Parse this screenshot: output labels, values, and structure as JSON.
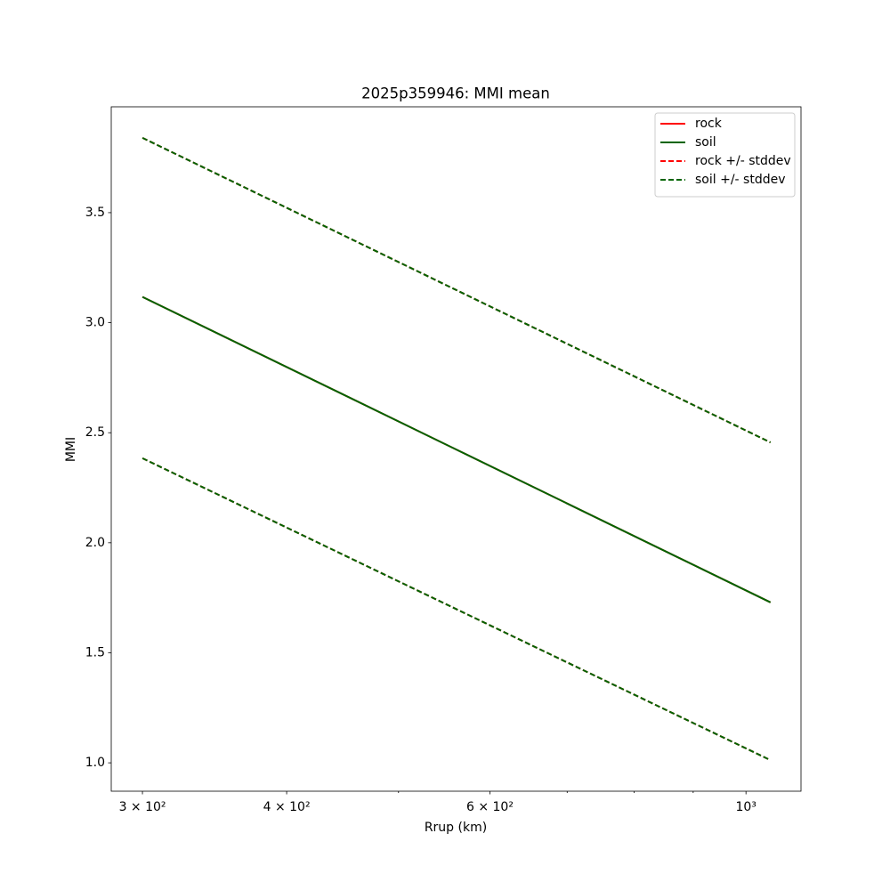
{
  "chart_data": {
    "type": "line",
    "title": "2025p359946: MMI mean",
    "xlabel": "Rrup (km)",
    "ylabel": "MMI",
    "xscale": "log",
    "x": [
      300,
      1050
    ],
    "series": [
      {
        "name": "rock",
        "color": "#ff0000",
        "dash": false,
        "values": [
          3.117,
          1.729
        ]
      },
      {
        "name": "soil",
        "color": "#006400",
        "dash": false,
        "values": [
          3.117,
          1.729
        ]
      },
      {
        "name": "rock +/- stddev",
        "color": "#ff0000",
        "dash": true,
        "upper": [
          3.84,
          2.456
        ],
        "lower": [
          2.384,
          1.012
        ]
      },
      {
        "name": "soil +/- stddev",
        "color": "#006400",
        "dash": true,
        "upper": [
          3.84,
          2.456
        ],
        "lower": [
          2.384,
          1.012
        ]
      }
    ],
    "xlim": [
      281.9,
      1116
    ],
    "ylim": [
      0.871,
      3.981
    ],
    "xticks": [
      {
        "value": 300,
        "label": "3 × 10²"
      },
      {
        "value": 400,
        "label": "4 × 10²"
      },
      {
        "value": 600,
        "label": "6 × 10²"
      },
      {
        "value": 1000,
        "label": "10³"
      }
    ],
    "xminorticks": [
      500,
      700,
      800,
      900
    ],
    "yticks": [
      {
        "value": 1.0,
        "label": "1.0"
      },
      {
        "value": 1.5,
        "label": "1.5"
      },
      {
        "value": 2.0,
        "label": "2.0"
      },
      {
        "value": 2.5,
        "label": "2.5"
      },
      {
        "value": 3.0,
        "label": "3.0"
      },
      {
        "value": 3.5,
        "label": "3.5"
      }
    ],
    "legend": "upper right",
    "grid": false
  }
}
